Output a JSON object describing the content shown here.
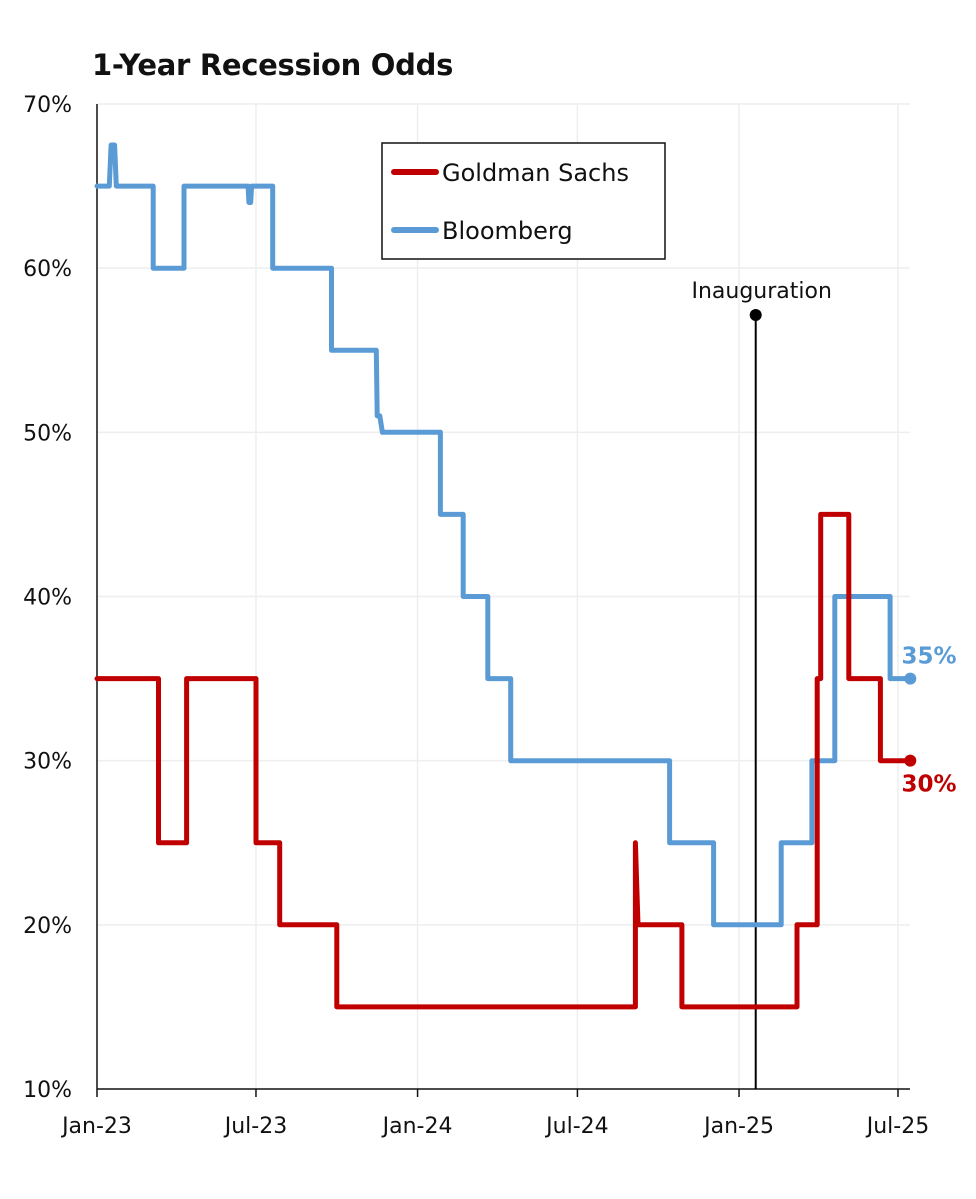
{
  "chart_data": {
    "type": "line",
    "title": "1-Year Recession Odds",
    "xlabel": "",
    "ylabel": "",
    "ylim": [
      10,
      70
    ],
    "xlim": [
      "2023-01-01",
      "2025-07-15"
    ],
    "y_ticks": [
      10,
      20,
      30,
      40,
      50,
      60,
      70
    ],
    "y_tick_labels": [
      "10%",
      "20%",
      "30%",
      "40%",
      "50%",
      "60%",
      "70%"
    ],
    "x_ticks": [
      "2023-01-01",
      "2023-07-01",
      "2024-01-01",
      "2024-07-01",
      "2025-01-01",
      "2025-07-01"
    ],
    "x_tick_labels": [
      "Jan-23",
      "Jul-23",
      "Jan-24",
      "Jul-24",
      "Jan-25",
      "Jul-25"
    ],
    "grid": true,
    "legend_position": "top-center",
    "series": [
      {
        "name": "Goldman Sachs",
        "color": "#c00000",
        "end_label": "30%",
        "points": [
          [
            "2023-01-01",
            35
          ],
          [
            "2023-03-12",
            35
          ],
          [
            "2023-03-12",
            25
          ],
          [
            "2023-04-13",
            25
          ],
          [
            "2023-04-13",
            35
          ],
          [
            "2023-07-01",
            35
          ],
          [
            "2023-07-01",
            25
          ],
          [
            "2023-07-28",
            25
          ],
          [
            "2023-07-28",
            20
          ],
          [
            "2023-10-01",
            20
          ],
          [
            "2023-10-01",
            15
          ],
          [
            "2024-09-05",
            15
          ],
          [
            "2024-09-05",
            25
          ],
          [
            "2024-09-08",
            20
          ],
          [
            "2024-10-28",
            20
          ],
          [
            "2024-10-28",
            15
          ],
          [
            "2025-03-08",
            15
          ],
          [
            "2025-03-08",
            20
          ],
          [
            "2025-03-31",
            20
          ],
          [
            "2025-03-31",
            35
          ],
          [
            "2025-04-04",
            35
          ],
          [
            "2025-04-04",
            45
          ],
          [
            "2025-05-06",
            45
          ],
          [
            "2025-05-06",
            35
          ],
          [
            "2025-06-11",
            35
          ],
          [
            "2025-06-11",
            30
          ],
          [
            "2025-07-15",
            30
          ]
        ]
      },
      {
        "name": "Bloomberg",
        "color": "#5b9bd5",
        "end_label": "35%",
        "points": [
          [
            "2023-01-01",
            65
          ],
          [
            "2023-01-15",
            65
          ],
          [
            "2023-01-17",
            67.5
          ],
          [
            "2023-01-21",
            67.5
          ],
          [
            "2023-01-23",
            65
          ],
          [
            "2023-03-06",
            65
          ],
          [
            "2023-03-06",
            60
          ],
          [
            "2023-04-10",
            60
          ],
          [
            "2023-04-10",
            65
          ],
          [
            "2023-06-22",
            65
          ],
          [
            "2023-06-23",
            64
          ],
          [
            "2023-06-25",
            64
          ],
          [
            "2023-06-26",
            65
          ],
          [
            "2023-07-20",
            65
          ],
          [
            "2023-07-20",
            60
          ],
          [
            "2023-09-25",
            60
          ],
          [
            "2023-09-25",
            55
          ],
          [
            "2023-11-15",
            55
          ],
          [
            "2023-11-16",
            51
          ],
          [
            "2023-11-19",
            51
          ],
          [
            "2023-11-22",
            50
          ],
          [
            "2024-01-27",
            50
          ],
          [
            "2024-01-27",
            45
          ],
          [
            "2024-02-22",
            45
          ],
          [
            "2024-02-22",
            40
          ],
          [
            "2024-03-21",
            40
          ],
          [
            "2024-03-21",
            35
          ],
          [
            "2024-04-16",
            35
          ],
          [
            "2024-04-16",
            30
          ],
          [
            "2024-10-14",
            30
          ],
          [
            "2024-10-14",
            25
          ],
          [
            "2024-12-03",
            25
          ],
          [
            "2024-12-03",
            20
          ],
          [
            "2025-02-18",
            20
          ],
          [
            "2025-02-18",
            25
          ],
          [
            "2025-03-25",
            25
          ],
          [
            "2025-03-25",
            30
          ],
          [
            "2025-04-20",
            30
          ],
          [
            "2025-04-20",
            40
          ],
          [
            "2025-06-22",
            40
          ],
          [
            "2025-06-22",
            35
          ],
          [
            "2025-07-15",
            35
          ]
        ]
      }
    ],
    "annotations": [
      {
        "text": "Inauguration",
        "x": "2025-01-20",
        "type": "vertical-line"
      }
    ]
  }
}
